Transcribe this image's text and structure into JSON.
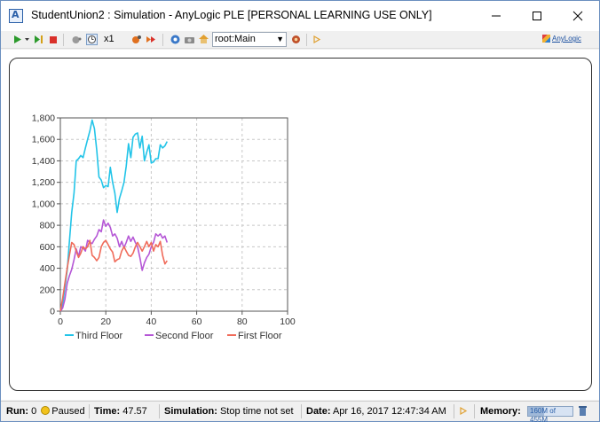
{
  "window": {
    "title": "StudentUnion2 : Simulation - AnyLogic PLE [PERSONAL LEARNING USE ONLY]"
  },
  "toolbar": {
    "speed_label": "x1",
    "root_select_value": "root:Main",
    "anylogic_link": "AnyLogic"
  },
  "statusbar": {
    "run_label": "Run:",
    "run_value": "0",
    "state": "Paused",
    "time_label": "Time:",
    "time_value": "47.57",
    "simulation_label": "Simulation:",
    "simulation_value": "Stop time not set",
    "date_label": "Date:",
    "date_value": "Apr 16, 2017 12:47:34 AM",
    "memory_label": "Memory:",
    "memory_used": "160M",
    "memory_total": "of 455M",
    "memory_fraction": 0.35
  },
  "chart_data": {
    "type": "line",
    "xlim": [
      0,
      100
    ],
    "ylim": [
      0,
      1800
    ],
    "xticks": [
      "0",
      "20",
      "40",
      "60",
      "80",
      "100"
    ],
    "yticks": [
      "0",
      "200",
      "400",
      "600",
      "800",
      "1,000",
      "1,200",
      "1,400",
      "1,600",
      "1,800"
    ],
    "grid": true,
    "legend_position": "bottom",
    "series": [
      {
        "name": "Third Floor",
        "color": "#22c4e8",
        "x": [
          0,
          1,
          2,
          3,
          4,
          5,
          6,
          7,
          8,
          9,
          10,
          11,
          12,
          13,
          14,
          15,
          16,
          17,
          18,
          19,
          20,
          21,
          22,
          23,
          24,
          25,
          26,
          27,
          28,
          29,
          30,
          31,
          32,
          33,
          34,
          35,
          36,
          37,
          38,
          39,
          40,
          41,
          42,
          43,
          44,
          45,
          46,
          47
        ],
        "y": [
          0,
          60,
          220,
          380,
          650,
          920,
          1100,
          1400,
          1420,
          1450,
          1430,
          1520,
          1600,
          1680,
          1780,
          1700,
          1500,
          1250,
          1220,
          1150,
          1170,
          1160,
          1340,
          1200,
          1100,
          920,
          1050,
          1120,
          1200,
          1350,
          1560,
          1430,
          1620,
          1650,
          1660,
          1520,
          1630,
          1400,
          1480,
          1550,
          1380,
          1390,
          1420,
          1420,
          1550,
          1520,
          1540,
          1580
        ]
      },
      {
        "name": "Second Floor",
        "color": "#b557d6",
        "x": [
          0,
          1,
          2,
          3,
          4,
          5,
          6,
          7,
          8,
          9,
          10,
          11,
          12,
          13,
          14,
          15,
          16,
          17,
          18,
          19,
          20,
          21,
          22,
          23,
          24,
          25,
          26,
          27,
          28,
          29,
          30,
          31,
          32,
          33,
          34,
          35,
          36,
          37,
          38,
          39,
          40,
          41,
          42,
          43,
          44,
          45,
          46,
          47
        ],
        "y": [
          0,
          30,
          110,
          260,
          330,
          390,
          480,
          580,
          510,
          600,
          590,
          560,
          660,
          640,
          630,
          670,
          700,
          760,
          740,
          850,
          790,
          820,
          780,
          700,
          720,
          680,
          600,
          650,
          590,
          640,
          700,
          650,
          690,
          640,
          600,
          500,
          380,
          450,
          500,
          530,
          600,
          640,
          720,
          700,
          720,
          680,
          700,
          640
        ]
      },
      {
        "name": "First Floor",
        "color": "#f06b5a",
        "x": [
          0,
          1,
          2,
          3,
          4,
          5,
          6,
          7,
          8,
          9,
          10,
          11,
          12,
          13,
          14,
          15,
          16,
          17,
          18,
          19,
          20,
          21,
          22,
          23,
          24,
          25,
          26,
          27,
          28,
          29,
          30,
          31,
          32,
          33,
          34,
          35,
          36,
          37,
          38,
          39,
          40,
          41,
          42,
          43,
          44,
          45,
          46,
          47
        ],
        "y": [
          0,
          120,
          260,
          400,
          520,
          640,
          620,
          560,
          500,
          540,
          600,
          580,
          600,
          660,
          520,
          500,
          470,
          500,
          600,
          640,
          660,
          620,
          580,
          550,
          460,
          480,
          490,
          560,
          600,
          560,
          520,
          510,
          540,
          600,
          640,
          600,
          560,
          600,
          650,
          600,
          640,
          560,
          620,
          600,
          650,
          520,
          440,
          470
        ]
      }
    ]
  }
}
